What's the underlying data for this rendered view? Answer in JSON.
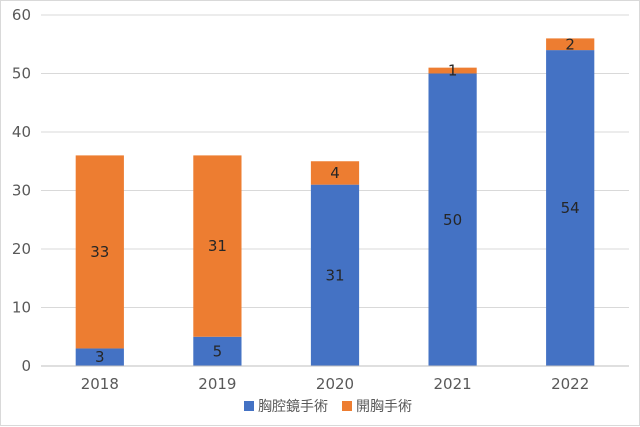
{
  "chart_data": {
    "type": "bar",
    "stacked": true,
    "title": "",
    "xlabel": "",
    "ylabel": "",
    "categories": [
      "2018",
      "2019",
      "2020",
      "2021",
      "2022"
    ],
    "series": [
      {
        "name": "胸腔鏡手術",
        "color": "#4472c4",
        "values": [
          3,
          5,
          31,
          50,
          54
        ]
      },
      {
        "name": "開胸手術",
        "color": "#ed7d31",
        "values": [
          33,
          31,
          4,
          1,
          2
        ]
      }
    ],
    "ylim": [
      0,
      60
    ],
    "yticks": [
      0,
      10,
      20,
      30,
      40,
      50,
      60
    ],
    "grid": true,
    "legend": "bottom-center"
  }
}
